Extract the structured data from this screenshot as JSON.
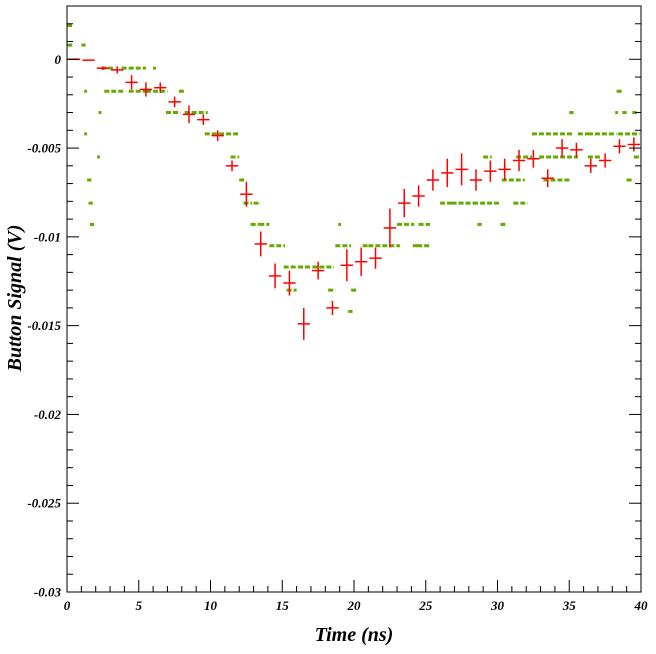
{
  "chart_data": {
    "type": "scatter",
    "title": "",
    "xlabel": "Time (ns)",
    "ylabel": "Button Signal (V)",
    "xlim": [
      0,
      40
    ],
    "ylim": [
      -0.03,
      0.003
    ],
    "x_ticks": [
      0,
      5,
      10,
      15,
      20,
      25,
      30,
      35,
      40
    ],
    "x_tick_labels": [
      "0",
      "5",
      "10",
      "15",
      "20",
      "25",
      "30",
      "35",
      "40"
    ],
    "y_ticks": [
      0,
      -0.005,
      -0.01,
      -0.015,
      -0.02,
      -0.025,
      -0.03
    ],
    "y_tick_labels": [
      "0",
      "-0.005",
      "-0.01",
      "-0.015",
      "-0.02",
      "-0.025",
      "-0.03"
    ],
    "grid": false,
    "colors": {
      "mean": "#ff0000",
      "samples": "#66aa00",
      "axis": "#000000"
    },
    "series": [
      {
        "marker": "cross-with-error-bars",
        "points": [
          {
            "x": 0.5,
            "y": 0.0,
            "xerr": 0.5,
            "yerr": 0.0
          },
          {
            "x": 1.5,
            "y": -5e-05,
            "xerr": 0.5,
            "yerr": 0.0
          },
          {
            "x": 2.5,
            "y": -0.0005,
            "xerr": 0.5,
            "yerr": 0.0001
          },
          {
            "x": 3.5,
            "y": -0.0006,
            "xerr": 0.5,
            "yerr": 0.0002
          },
          {
            "x": 4.5,
            "y": -0.0013,
            "xerr": 0.5,
            "yerr": 0.0004
          },
          {
            "x": 5.5,
            "y": -0.0017,
            "xerr": 0.5,
            "yerr": 0.0004
          },
          {
            "x": 6.5,
            "y": -0.0016,
            "xerr": 0.5,
            "yerr": 0.0003
          },
          {
            "x": 7.5,
            "y": -0.0024,
            "xerr": 0.5,
            "yerr": 0.0003
          },
          {
            "x": 8.5,
            "y": -0.0031,
            "xerr": 0.5,
            "yerr": 0.0005
          },
          {
            "x": 9.5,
            "y": -0.0034,
            "xerr": 0.5,
            "yerr": 0.0003
          },
          {
            "x": 10.5,
            "y": -0.0043,
            "xerr": 0.5,
            "yerr": 0.0003
          },
          {
            "x": 11.5,
            "y": -0.006,
            "xerr": 0.5,
            "yerr": 0.0003
          },
          {
            "x": 12.5,
            "y": -0.0076,
            "xerr": 0.5,
            "yerr": 0.0007
          },
          {
            "x": 13.5,
            "y": -0.0104,
            "xerr": 0.5,
            "yerr": 0.0007
          },
          {
            "x": 14.5,
            "y": -0.0122,
            "xerr": 0.5,
            "yerr": 0.0007
          },
          {
            "x": 15.5,
            "y": -0.0126,
            "xerr": 0.5,
            "yerr": 0.0007
          },
          {
            "x": 16.5,
            "y": -0.0149,
            "xerr": 0.5,
            "yerr": 0.0009
          },
          {
            "x": 17.5,
            "y": -0.0119,
            "xerr": 0.5,
            "yerr": 0.0005
          },
          {
            "x": 18.5,
            "y": -0.014,
            "xerr": 0.5,
            "yerr": 0.0004
          },
          {
            "x": 19.5,
            "y": -0.0116,
            "xerr": 0.5,
            "yerr": 0.0009
          },
          {
            "x": 20.5,
            "y": -0.0114,
            "xerr": 0.5,
            "yerr": 0.0008
          },
          {
            "x": 21.5,
            "y": -0.0112,
            "xerr": 0.5,
            "yerr": 0.0006
          },
          {
            "x": 22.5,
            "y": -0.0095,
            "xerr": 0.5,
            "yerr": 0.0011
          },
          {
            "x": 23.5,
            "y": -0.0081,
            "xerr": 0.5,
            "yerr": 0.0008
          },
          {
            "x": 24.5,
            "y": -0.0077,
            "xerr": 0.5,
            "yerr": 0.0006
          },
          {
            "x": 25.5,
            "y": -0.0068,
            "xerr": 0.5,
            "yerr": 0.0006
          },
          {
            "x": 26.5,
            "y": -0.0064,
            "xerr": 0.5,
            "yerr": 0.0008
          },
          {
            "x": 27.5,
            "y": -0.0062,
            "xerr": 0.5,
            "yerr": 0.0009
          },
          {
            "x": 28.5,
            "y": -0.0068,
            "xerr": 0.5,
            "yerr": 0.0006
          },
          {
            "x": 29.5,
            "y": -0.0063,
            "xerr": 0.5,
            "yerr": 0.0006
          },
          {
            "x": 30.5,
            "y": -0.0062,
            "xerr": 0.5,
            "yerr": 0.0006
          },
          {
            "x": 31.5,
            "y": -0.0057,
            "xerr": 0.5,
            "yerr": 0.0006
          },
          {
            "x": 32.5,
            "y": -0.0056,
            "xerr": 0.5,
            "yerr": 0.0005
          },
          {
            "x": 33.5,
            "y": -0.0067,
            "xerr": 0.5,
            "yerr": 0.0005
          },
          {
            "x": 34.5,
            "y": -0.005,
            "xerr": 0.5,
            "yerr": 0.0005
          },
          {
            "x": 35.5,
            "y": -0.0051,
            "xerr": 0.5,
            "yerr": 0.0004
          },
          {
            "x": 36.5,
            "y": -0.006,
            "xerr": 0.5,
            "yerr": 0.0004
          },
          {
            "x": 37.5,
            "y": -0.0057,
            "xerr": 0.5,
            "yerr": 0.0004
          },
          {
            "x": 38.5,
            "y": -0.0049,
            "xerr": 0.5,
            "yerr": 0.0004
          },
          {
            "x": 39.5,
            "y": -0.0048,
            "xerr": 0.5,
            "yerr": 0.0004
          }
        ]
      },
      {
        "marker": "green-dash-samples",
        "segments": [
          [
            0,
            0.4,
            0.0019
          ],
          [
            0,
            0.4,
            0.0008
          ],
          [
            1.0,
            1.3,
            0.0008
          ],
          [
            1.2,
            1.4,
            -0.0018
          ],
          [
            1.2,
            1.4,
            -0.0042
          ],
          [
            1.4,
            1.7,
            -0.0068
          ],
          [
            1.5,
            1.8,
            -0.0081
          ],
          [
            1.6,
            1.9,
            -0.0093
          ],
          [
            2.1,
            2.3,
            -0.0055
          ],
          [
            2.2,
            2.4,
            -0.003
          ],
          [
            2.4,
            3.2,
            -0.0005
          ],
          [
            2.6,
            3.9,
            -0.0018
          ],
          [
            3.8,
            4.3,
            -0.0005
          ],
          [
            4.3,
            5.5,
            -0.0005
          ],
          [
            4.3,
            5.6,
            -0.0018
          ],
          [
            6.0,
            6.2,
            -0.0005
          ],
          [
            5.5,
            7.0,
            -0.0018
          ],
          [
            6.9,
            7.9,
            -0.003
          ],
          [
            7.8,
            8.2,
            -0.0018
          ],
          [
            8.2,
            9.8,
            -0.003
          ],
          [
            9.6,
            10.6,
            -0.0042
          ],
          [
            10.6,
            12.0,
            -0.0042
          ],
          [
            11.4,
            12.0,
            -0.0055
          ],
          [
            12.0,
            12.5,
            -0.0068
          ],
          [
            12.3,
            12.9,
            -0.0081
          ],
          [
            13.0,
            13.5,
            -0.0081
          ],
          [
            12.8,
            13.4,
            -0.0093
          ],
          [
            13.4,
            14.1,
            -0.0093
          ],
          [
            14.1,
            15.2,
            -0.0105
          ],
          [
            15.1,
            16.0,
            -0.0117
          ],
          [
            15.3,
            16.0,
            -0.013
          ],
          [
            16.1,
            17.0,
            -0.0117
          ],
          [
            17.1,
            18.6,
            -0.0117
          ],
          [
            18.2,
            18.7,
            -0.013
          ],
          [
            18.9,
            19.1,
            -0.0093
          ],
          [
            18.7,
            19.8,
            -0.0105
          ],
          [
            19.6,
            19.9,
            -0.0142
          ],
          [
            19.8,
            20.2,
            -0.013
          ],
          [
            20.6,
            21.0,
            -0.0105
          ],
          [
            21.0,
            23.2,
            -0.0105
          ],
          [
            23.0,
            24.2,
            -0.0093
          ],
          [
            24.1,
            24.5,
            -0.0105
          ],
          [
            24.5,
            25.3,
            -0.0093
          ],
          [
            24.4,
            25.3,
            -0.0105
          ],
          [
            26.0,
            26.8,
            -0.0081
          ],
          [
            26.8,
            28.5,
            -0.0081
          ],
          [
            28.6,
            28.9,
            -0.0093
          ],
          [
            28.3,
            30.1,
            -0.0081
          ],
          [
            29.0,
            29.6,
            -0.0055
          ],
          [
            30.2,
            30.7,
            -0.0093
          ],
          [
            30.3,
            31.9,
            -0.0068
          ],
          [
            31.1,
            32.1,
            -0.0081
          ],
          [
            31.3,
            32.4,
            -0.0055
          ],
          [
            32.4,
            35.2,
            -0.0042
          ],
          [
            32.9,
            35.6,
            -0.0055
          ],
          [
            33.2,
            35.1,
            -0.0068
          ],
          [
            35.0,
            35.3,
            -0.003
          ],
          [
            35.6,
            36.3,
            -0.0042
          ],
          [
            36.3,
            38.3,
            -0.0042
          ],
          [
            36.3,
            37.2,
            -0.0055
          ],
          [
            38.3,
            38.7,
            -0.0018
          ],
          [
            38.2,
            38.4,
            -0.003
          ],
          [
            38.4,
            39.9,
            -0.0042
          ],
          [
            38.7,
            39.0,
            -0.003
          ],
          [
            39.4,
            39.7,
            -0.003
          ],
          [
            39.0,
            39.4,
            -0.0068
          ],
          [
            39.5,
            40.0,
            -0.0055
          ]
        ]
      }
    ]
  }
}
